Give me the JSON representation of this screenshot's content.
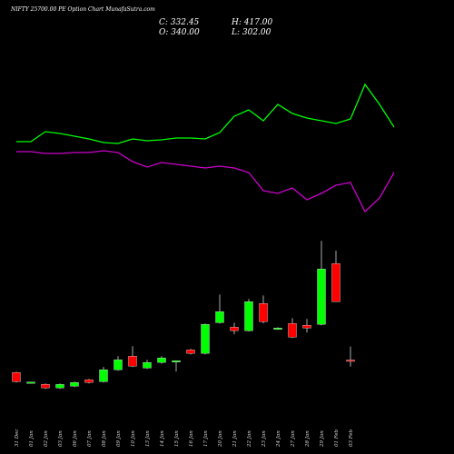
{
  "chart_data": {
    "type": "candlestick",
    "title": "NIFTY 25700.00 PE Option Chart MunafaSutra.com",
    "close_label": "C: 332.45",
    "high_label": "H: 417.00",
    "open_label": "O: 340.00",
    "low_label": "L: 302.00",
    "categories": [
      "31 Dec",
      "01 Jan",
      "02 Jan",
      "03 Jan",
      "06 Jan",
      "07 Jan",
      "08 Jan",
      "09 Jan",
      "10 Jan",
      "13 Jan",
      "14 Jan",
      "15 Jan",
      "16 Jan",
      "17 Jan",
      "20 Jan",
      "21 Jan",
      "22 Jan",
      "23 Jan",
      "24 Jan",
      "27 Jan",
      "28 Jan",
      "29 Jan",
      "01 Feb",
      "03 Feb",
      null,
      null,
      null
    ],
    "open": [
      268,
      213,
      201,
      180,
      190,
      227,
      216,
      284,
      362,
      294,
      326,
      331,
      398,
      378,
      554,
      528,
      508,
      664,
      518,
      549,
      539,
      544,
      892,
      340,
      null,
      null,
      null
    ],
    "high": [
      273,
      216,
      206,
      205,
      216,
      232,
      300,
      362,
      419,
      341,
      362,
      336,
      404,
      549,
      715,
      554,
      690,
      710,
      528,
      580,
      575,
      1023,
      966,
      417,
      null,
      null,
      null
    ],
    "low": [
      211,
      208,
      175,
      175,
      185,
      206,
      211,
      279,
      300,
      289,
      320,
      274,
      372,
      372,
      549,
      487,
      503,
      550,
      513,
      466,
      497,
      539,
      674,
      302,
      null,
      null,
      null
    ],
    "close": [
      216,
      214,
      180,
      200,
      211,
      211,
      284,
      341,
      305,
      326,
      352,
      336,
      378,
      544,
      617,
      508,
      674,
      560,
      523,
      471,
      523,
      861,
      674,
      332.45,
      null,
      null,
      null
    ],
    "up_color": "#00ff00",
    "down_color": "#ff0000",
    "wick_color": "#aaaaaa",
    "ylim": [
      150,
      1050
    ],
    "series": [
      {
        "color": "#00ff00",
        "axis": "y2",
        "values": [
          84,
          84,
          95,
          93,
          90,
          87,
          83,
          82,
          87,
          85,
          86,
          88,
          88,
          87,
          94,
          112,
          119,
          107,
          125,
          115,
          110,
          107,
          104,
          109,
          147,
          125,
          100
        ]
      },
      {
        "color": "#cc00cc",
        "axis": "y2",
        "values": [
          73,
          73,
          71,
          71,
          72,
          72,
          74,
          72,
          62,
          56,
          61,
          59,
          57,
          55,
          57,
          55,
          50,
          30,
          27,
          33,
          20,
          27,
          36,
          39,
          7,
          22,
          50
        ]
      }
    ],
    "y2lim": [
      0,
      150
    ]
  }
}
